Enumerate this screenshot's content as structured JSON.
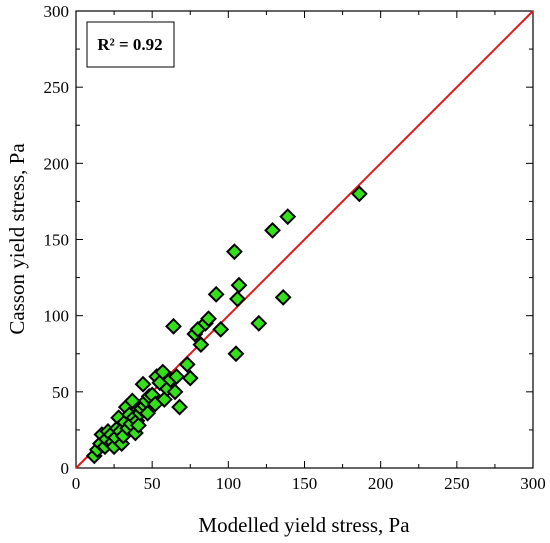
{
  "chart_data": {
    "type": "scatter",
    "xlabel": "Modelled yield stress, Pa",
    "ylabel": "Casson yield stress, Pa",
    "xlim": [
      0,
      300
    ],
    "ylim": [
      0,
      300
    ],
    "x_ticks": [
      "0",
      "50",
      "100",
      "150",
      "200",
      "250",
      "300"
    ],
    "y_ticks": [
      "0",
      "50",
      "100",
      "150",
      "200",
      "250",
      "300"
    ],
    "annotation": "R² = 0.92",
    "grid": false,
    "reference_line": {
      "from": [
        0,
        0
      ],
      "to": [
        300,
        300
      ],
      "color": "#e8161b"
    },
    "marker": {
      "shape": "diamond",
      "fill": "#33e01a",
      "stroke": "#000000"
    },
    "series": [
      {
        "points": [
          [
            12,
            8
          ],
          [
            14,
            12
          ],
          [
            16,
            16
          ],
          [
            17,
            22
          ],
          [
            19,
            14
          ],
          [
            20,
            19
          ],
          [
            21,
            24
          ],
          [
            23,
            22
          ],
          [
            24,
            17
          ],
          [
            25,
            14
          ],
          [
            26,
            20
          ],
          [
            27,
            26
          ],
          [
            28,
            33
          ],
          [
            29,
            24
          ],
          [
            30,
            16
          ],
          [
            31,
            21
          ],
          [
            32,
            30
          ],
          [
            33,
            40
          ],
          [
            34,
            26
          ],
          [
            35,
            35
          ],
          [
            36,
            29
          ],
          [
            37,
            44
          ],
          [
            38,
            33
          ],
          [
            39,
            23
          ],
          [
            40,
            31
          ],
          [
            41,
            28
          ],
          [
            42,
            36
          ],
          [
            43,
            39
          ],
          [
            44,
            55
          ],
          [
            45,
            41
          ],
          [
            46,
            44
          ],
          [
            47,
            36
          ],
          [
            48,
            47
          ],
          [
            50,
            48
          ],
          [
            52,
            42
          ],
          [
            53,
            60
          ],
          [
            55,
            56
          ],
          [
            57,
            63
          ],
          [
            58,
            45
          ],
          [
            60,
            52
          ],
          [
            62,
            58
          ],
          [
            64,
            93
          ],
          [
            65,
            50
          ],
          [
            66,
            60
          ],
          [
            68,
            40
          ],
          [
            73,
            68
          ],
          [
            75,
            59
          ],
          [
            78,
            88
          ],
          [
            80,
            91
          ],
          [
            82,
            81
          ],
          [
            85,
            95
          ],
          [
            87,
            98
          ],
          [
            92,
            114
          ],
          [
            95,
            91
          ],
          [
            104,
            142
          ],
          [
            105,
            75
          ],
          [
            106,
            111
          ],
          [
            107,
            120
          ],
          [
            120,
            95
          ],
          [
            129,
            156
          ],
          [
            136,
            112
          ],
          [
            139,
            165
          ],
          [
            186,
            180
          ]
        ]
      }
    ]
  }
}
